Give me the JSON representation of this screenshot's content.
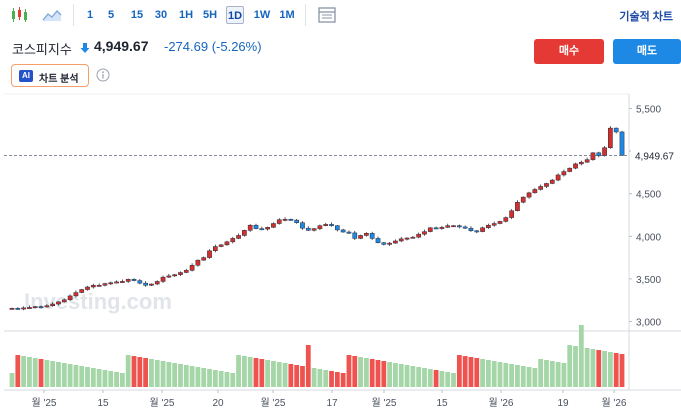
{
  "toolbar": {
    "chart_type_icons": [
      "candlestick-icon",
      "area-chart-icon"
    ],
    "timeframes": [
      {
        "label": "1",
        "active": false
      },
      {
        "label": "5",
        "active": false
      },
      {
        "label": "15",
        "active": false
      },
      {
        "label": "30",
        "active": false
      },
      {
        "label": "1H",
        "active": false
      },
      {
        "label": "5H",
        "active": false
      },
      {
        "label": "1D",
        "active": true
      },
      {
        "label": "1W",
        "active": false
      },
      {
        "label": "1M",
        "active": false
      }
    ],
    "fullscreen_icon": "chart-window-icon",
    "technical_chart_label": "기술적 차트"
  },
  "header": {
    "index_name": "코스피지수",
    "price": "4,949.67",
    "change": "-274.69 (-5.26%)",
    "buy_label": "매수",
    "sell_label": "매도",
    "ai_badge": "AI",
    "ai_label": "차트 분석",
    "info_icon": "info-icon"
  },
  "colors": {
    "up": "#d32f2f",
    "down": "#1e88e5",
    "buy": "#e53935",
    "sell": "#1e88e5",
    "vol_up": "#a5d6a7",
    "vol_down": "#ef5350"
  },
  "chart_data": {
    "type": "candlestick",
    "ylim": [
      2900,
      5600
    ],
    "y_ticks": [
      "5,500",
      "5,000",
      "4,500",
      "4,000",
      "3,500",
      "3,000"
    ],
    "last_price_label": "4,949.67",
    "last_price": 4949.67,
    "x_tick_labels": [
      "월 '25",
      "15",
      "월 '25",
      "20",
      "월 '25",
      "17",
      "월 '25",
      "15",
      "월 '26",
      "19",
      "월 '26"
    ],
    "watermark": "Investing.com",
    "closes": [
      3155,
      3150,
      3160,
      3165,
      3175,
      3170,
      3185,
      3205,
      3230,
      3255,
      3300,
      3340,
      3375,
      3405,
      3425,
      3425,
      3445,
      3455,
      3465,
      3470,
      3495,
      3480,
      3450,
      3425,
      3440,
      3470,
      3520,
      3535,
      3550,
      3575,
      3600,
      3660,
      3720,
      3750,
      3830,
      3880,
      3900,
      3935,
      3975,
      4010,
      4070,
      4130,
      4090,
      4085,
      4105,
      4150,
      4195,
      4200,
      4190,
      4160,
      4095,
      4070,
      4090,
      4125,
      4140,
      4125,
      4075,
      4050,
      4040,
      3975,
      4010,
      4035,
      3975,
      3925,
      3905,
      3920,
      3945,
      3970,
      3980,
      3990,
      4025,
      4055,
      4100,
      4095,
      4105,
      4125,
      4125,
      4110,
      4095,
      4065,
      4055,
      4100,
      4130,
      4150,
      4175,
      4220,
      4300,
      4400,
      4460,
      4510,
      4550,
      4585,
      4620,
      4660,
      4720,
      4760,
      4800,
      4850,
      4870,
      4900,
      4980,
      4945,
      5040,
      5270,
      5225,
      4950
    ]
  }
}
